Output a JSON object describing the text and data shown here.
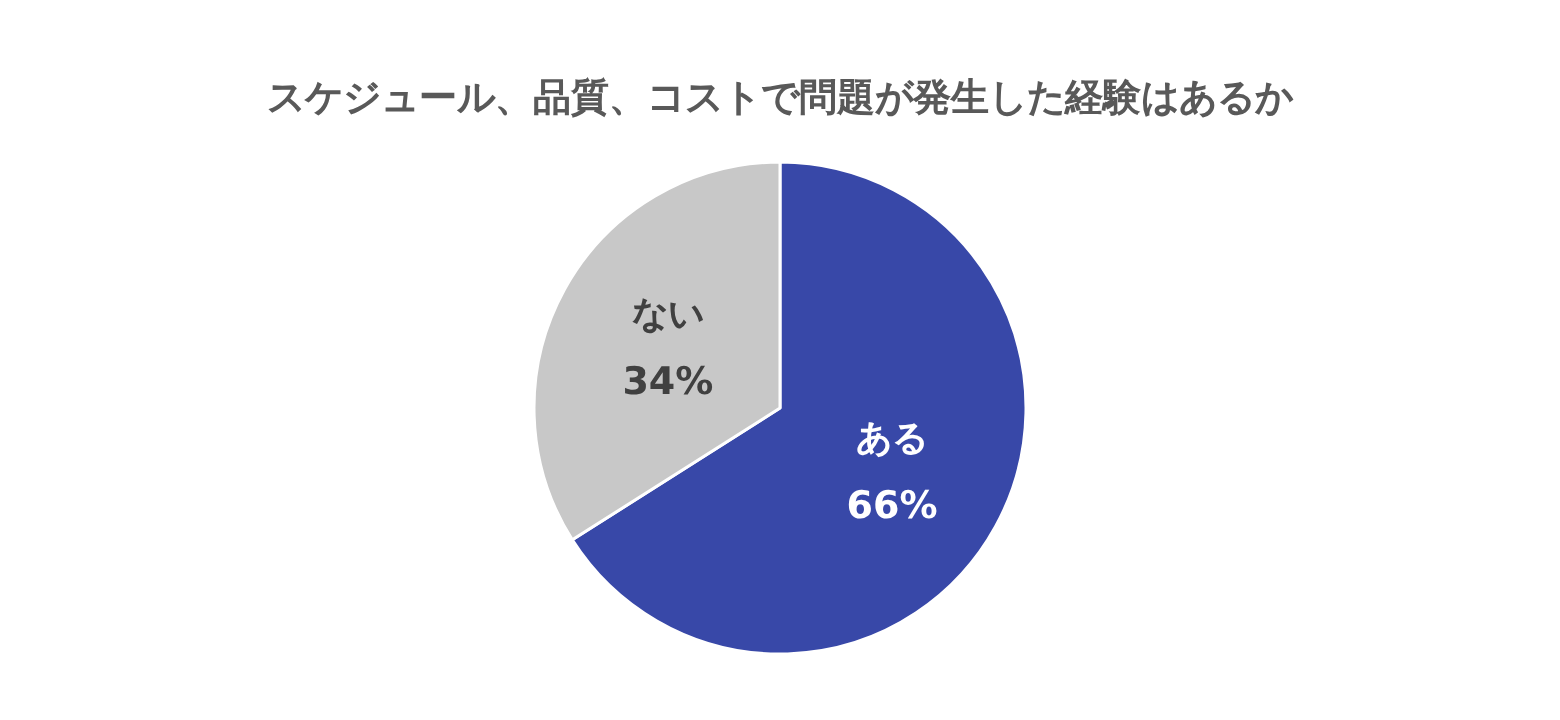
{
  "chart_data": {
    "type": "pie",
    "title": "スケジュール、品質、コストで問題が発生した経験はあるか",
    "categories": [
      "ある",
      "ない"
    ],
    "values": [
      66,
      34
    ],
    "colors": [
      "#3848a8",
      "#c8c8c8"
    ],
    "value_labels": [
      "66%",
      "34%"
    ]
  }
}
